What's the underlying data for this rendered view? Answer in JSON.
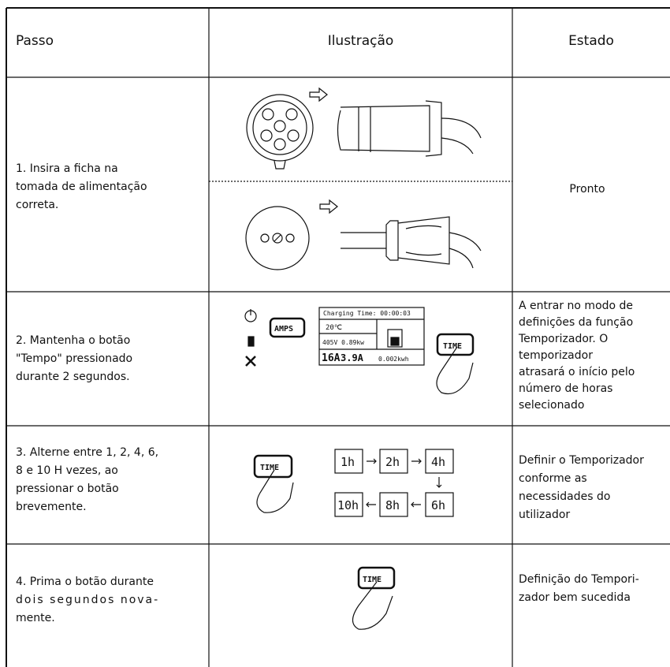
{
  "header": {
    "step": "Passo",
    "illustration": "Ilustração",
    "status": "Estado"
  },
  "rows": [
    {
      "step": [
        "1. Insira a ficha na",
        "tomada de alimentação",
        "correta."
      ],
      "status": [
        "Pronto"
      ]
    },
    {
      "step": [
        "2. Mantenha o botão",
        "\"Tempo\" pressionado",
        "durante 2 segundos."
      ],
      "status": [
        "A entrar no modo de",
        "definições da função",
        "Temporizador. O",
        "temporizador",
        "atrasará o início pelo",
        "número de horas",
        "selecionado"
      ]
    },
    {
      "step": [
        "3. Alterne entre 1, 2, 4, 6,",
        "8 e 10 H vezes, ao",
        "pressionar o botão",
        "brevemente."
      ],
      "status": [
        "Definir o Temporizador",
        "conforme as",
        "necessidades do",
        "utilizador"
      ]
    },
    {
      "step": [
        "4. Prima o botão durante",
        "dois segundos nova-",
        "mente."
      ],
      "status": [
        "Definição do Tempori-",
        "zador bem sucedida"
      ]
    }
  ],
  "display": {
    "charging_time": "Charging Time: 00:00:03",
    "temperature": "20℃",
    "power": "405V 0.89kw",
    "current_set": "16A",
    "current": "3.9A",
    "energy": "0.002kwh"
  },
  "buttons": {
    "amps": "AMPS",
    "time": "TIME"
  },
  "timer_steps": [
    "1h",
    "2h",
    "4h",
    "6h",
    "8h",
    "10h"
  ]
}
